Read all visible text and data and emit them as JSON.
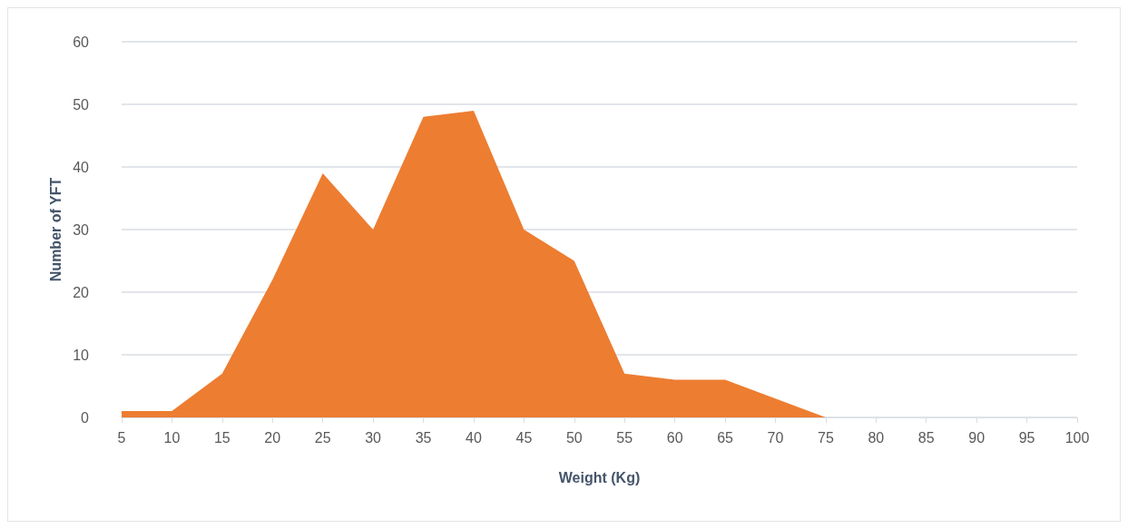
{
  "chart_data": {
    "type": "area",
    "xlabel": "Weight (Kg)",
    "ylabel": "Number of YFT",
    "x": [
      5,
      10,
      15,
      20,
      25,
      30,
      35,
      40,
      45,
      50,
      55,
      60,
      65,
      70,
      75,
      80,
      85,
      90,
      95,
      100
    ],
    "series": [
      {
        "color": "#ed7d31",
        "values": [
          1,
          1,
          7,
          22,
          39,
          30,
          48,
          49,
          30,
          25,
          7,
          6,
          6,
          3,
          0,
          0,
          0,
          0,
          0,
          0
        ]
      }
    ],
    "xlim": [
      5,
      100
    ],
    "xticks": [
      5,
      10,
      15,
      20,
      25,
      30,
      35,
      40,
      45,
      50,
      55,
      60,
      65,
      70,
      75,
      80,
      85,
      90,
      95,
      100
    ],
    "ylim": [
      0,
      60
    ],
    "yticks": [
      0,
      10,
      20,
      30,
      40,
      50,
      60
    ],
    "grid": "y"
  }
}
